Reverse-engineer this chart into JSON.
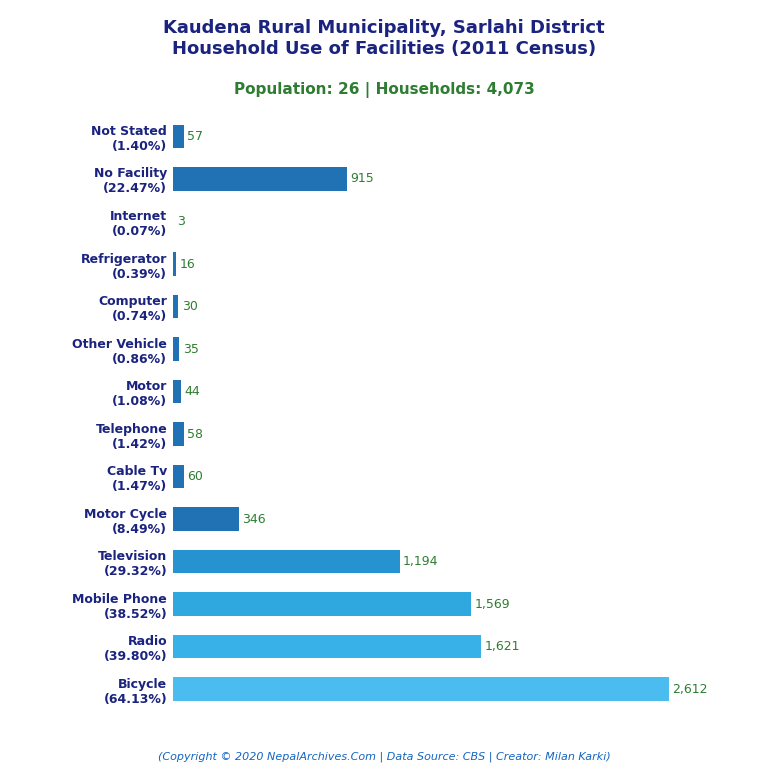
{
  "title_line1": "Kaudena Rural Municipality, Sarlahi District",
  "title_line2": "Household Use of Facilities (2011 Census)",
  "subtitle": "Population: 26 | Households: 4,073",
  "footer": "(Copyright © 2020 NepalArchives.Com | Data Source: CBS | Creator: Milan Karki)",
  "categories": [
    "Not Stated\n(1.40%)",
    "No Facility\n(22.47%)",
    "Internet\n(0.07%)",
    "Refrigerator\n(0.39%)",
    "Computer\n(0.74%)",
    "Other Vehicle\n(0.86%)",
    "Motor\n(1.08%)",
    "Telephone\n(1.42%)",
    "Cable Tv\n(1.47%)",
    "Motor Cycle\n(8.49%)",
    "Television\n(29.32%)",
    "Mobile Phone\n(38.52%)",
    "Radio\n(39.80%)",
    "Bicycle\n(64.13%)"
  ],
  "values": [
    57,
    915,
    3,
    16,
    30,
    35,
    44,
    58,
    60,
    346,
    1194,
    1569,
    1621,
    2612
  ],
  "value_labels": [
    "57",
    "915",
    "3",
    "16",
    "30",
    "35",
    "44",
    "58",
    "60",
    "346",
    "1,194",
    "1,569",
    "1,621",
    "2,612"
  ],
  "bar_colors": [
    "#2171b5",
    "#2171b5",
    "#2171b5",
    "#2171b5",
    "#2171b5",
    "#2171b5",
    "#2171b5",
    "#2171b5",
    "#2171b5",
    "#2171b5",
    "#2693d0",
    "#2fa8e0",
    "#38b0e8",
    "#4bbcf0"
  ],
  "title_color": "#1a237e",
  "subtitle_color": "#2e7d32",
  "footer_color": "#1565c0",
  "value_label_color": "#2e7d32",
  "ylabel_fontsize": 9,
  "value_fontsize": 9,
  "title_fontsize": 13,
  "subtitle_fontsize": 11,
  "footer_fontsize": 8,
  "background_color": "#ffffff",
  "xlim": [
    0,
    2850
  ]
}
